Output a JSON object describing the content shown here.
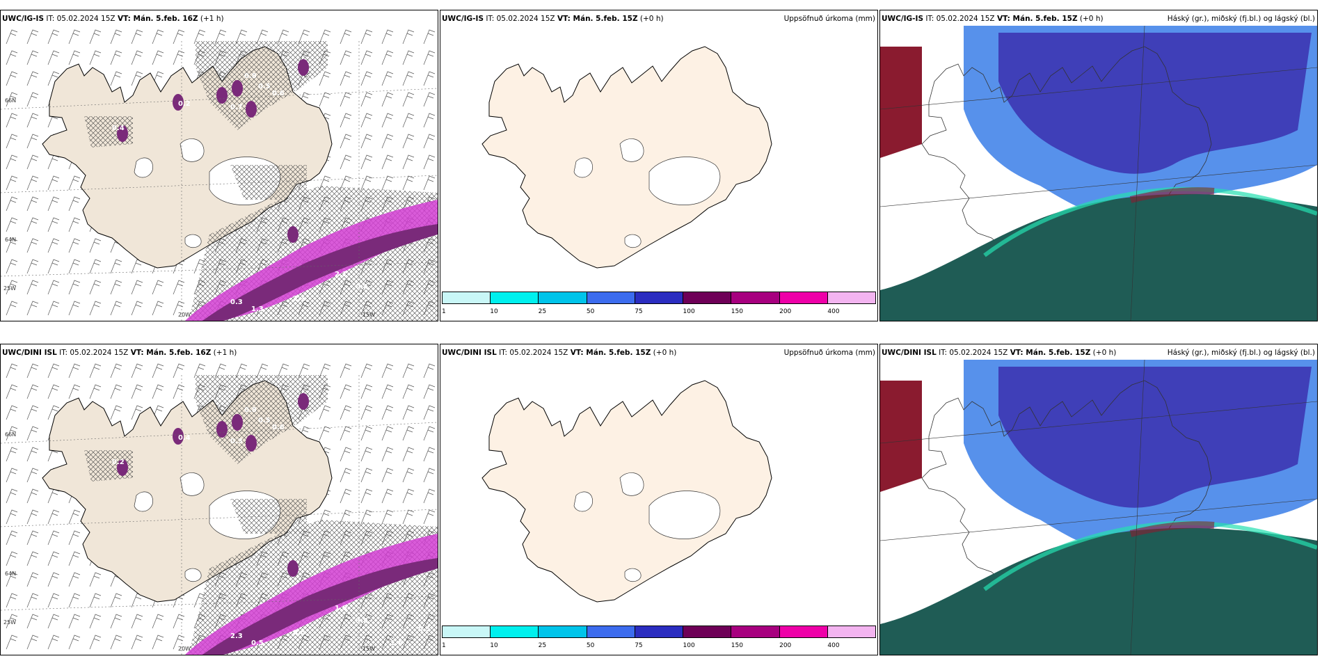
{
  "panels": [
    {
      "model": "UWC/IG-IS",
      "it": "05.02.2024 15Z",
      "vt": "Mán. 5.feb. 16Z",
      "lead": "(+1 h)",
      "right": "",
      "type": "wind"
    },
    {
      "model": "UWC/IG-IS",
      "it": "05.02.2024 15Z",
      "vt": "Mán. 5.feb. 15Z",
      "lead": "(+0 h)",
      "right": "Uppsöfnuð úrkoma (mm)",
      "type": "precip"
    },
    {
      "model": "UWC/IG-IS",
      "it": "05.02.2024 15Z",
      "vt": "Mán. 5.feb. 15Z",
      "lead": "(+0 h)",
      "right": "Háský (gr.), miðský (fj.bl.) og lágský (bl.)",
      "type": "cloud"
    },
    {
      "model": "UWC/DINI ISL",
      "it": "05.02.2024 15Z",
      "vt": "Mán. 5.feb. 16Z",
      "lead": "(+1 h)",
      "right": "",
      "type": "wind"
    },
    {
      "model": "UWC/DINI ISL",
      "it": "05.02.2024 15Z",
      "vt": "Mán. 5.feb. 15Z",
      "lead": "(+0 h)",
      "right": "Uppsöfnuð úrkoma (mm)",
      "type": "precip"
    },
    {
      "model": "UWC/DINI ISL",
      "it": "05.02.2024 15Z",
      "vt": "Mán. 5.feb. 15Z",
      "lead": "(+0 h)",
      "right": "Háský (gr.), miðský (fj.bl.) og lágský (bl.)",
      "type": "cloud"
    }
  ],
  "colorbar": {
    "ticks": [
      "1",
      "10",
      "25",
      "50",
      "75",
      "100",
      "150",
      "200",
      "400"
    ],
    "colors": [
      "#c9f7f7",
      "#00f0ee",
      "#00c4ea",
      "#3c6cee",
      "#2b2dc0",
      "#6e0057",
      "#a7007f",
      "#ee00a8",
      "#f3b4f0"
    ]
  },
  "axis_labels": {
    "w25": "25W",
    "w20": "20W",
    "w15": "15W",
    "n64": "64N",
    "n66": "66N"
  },
  "precip_labels": {
    "top": [
      "0.5",
      "0.6",
      "0.8",
      "0.7",
      "0.4",
      "0.2",
      "0.3",
      "1.3",
      "2.1",
      "2.1",
      "0.4"
    ],
    "bottom": [
      "0.5",
      "0.6",
      "0.8",
      "0.3",
      "0.2",
      "0.4",
      "2.3",
      "0.5",
      "0.6",
      "1.0",
      "3.8",
      "1.6",
      "0.5"
    ]
  },
  "colors": {
    "land": "#f0e6d8",
    "land_precip": "#fdf1e4",
    "coast": "#000000",
    "purple": "#7a2a7a",
    "magenta": "#d23ed2",
    "cloud_high": "#3f3fb8",
    "cloud_mid": "#3a7ee8",
    "cloud_low": "#1f5c55",
    "cloud_red": "#8a1b2f"
  }
}
